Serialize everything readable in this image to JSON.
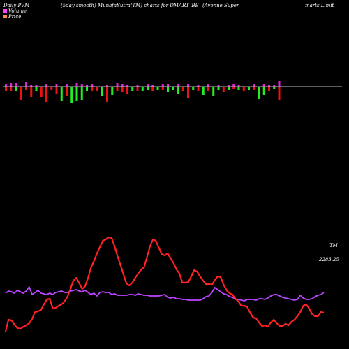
{
  "header": {
    "left": "Daily PVM",
    "center": "(5day smooth) MunafaSutra(TM) charts for DMART_BE",
    "right_a": "(Avenue   Super",
    "right_b": "marts Limit"
  },
  "legend": {
    "volume_label": "Volume",
    "price_label": "Price",
    "volume_color": "#ff44ff",
    "price_color": "#ff8844"
  },
  "labels": {
    "tm": "TM",
    "last_price": "2283.25"
  },
  "colors": {
    "background": "#000000",
    "volume_up": "#dd22dd",
    "volume_down_green": "#22ee22",
    "volume_down_red": "#ee1111",
    "price_line": "#ff2222",
    "volume_line": "#bb44ff",
    "baseline": "#bbbbbb"
  },
  "chart_data": {
    "type": "bar+line",
    "volume_bars": [
      {
        "up": 3,
        "down": 6,
        "down_color": "red"
      },
      {
        "up": 5,
        "down": 6,
        "down_color": "red"
      },
      {
        "up": 5,
        "down": 6,
        "down_color": "green"
      },
      {
        "up": 0,
        "down": 19,
        "down_color": "red"
      },
      {
        "up": 7,
        "down": 5,
        "down_color": "red"
      },
      {
        "up": 2,
        "down": 15,
        "down_color": "red"
      },
      {
        "up": 2,
        "down": 6,
        "down_color": "green"
      },
      {
        "up": 0,
        "down": 15,
        "down_color": "red"
      },
      {
        "up": 3,
        "down": 22,
        "down_color": "red"
      },
      {
        "up": 0,
        "down": 5,
        "down_color": "red"
      },
      {
        "up": 3,
        "down": 11,
        "down_color": "red"
      },
      {
        "up": 0,
        "down": 20,
        "down_color": "green"
      },
      {
        "up": 4,
        "down": 13,
        "down_color": "red"
      },
      {
        "up": 0,
        "down": 23,
        "down_color": "green"
      },
      {
        "up": 5,
        "down": 20,
        "down_color": "green"
      },
      {
        "up": 3,
        "down": 19,
        "down_color": "green"
      },
      {
        "up": 2,
        "down": 6,
        "down_color": "green"
      },
      {
        "up": 4,
        "down": 7,
        "down_color": "red"
      },
      {
        "up": 0,
        "down": 6,
        "down_color": "red"
      },
      {
        "up": 0,
        "down": 13,
        "down_color": "green"
      },
      {
        "up": 2,
        "down": 22,
        "down_color": "red"
      },
      {
        "up": 0,
        "down": 12,
        "down_color": "green"
      },
      {
        "up": 5,
        "down": 6,
        "down_color": "red"
      },
      {
        "up": 3,
        "down": 8,
        "down_color": "red"
      },
      {
        "up": 2,
        "down": 10,
        "down_color": "red"
      },
      {
        "up": 0,
        "down": 6,
        "down_color": "green"
      },
      {
        "up": 2,
        "down": 6,
        "down_color": "red"
      },
      {
        "up": 0,
        "down": 7,
        "down_color": "green"
      },
      {
        "up": 3,
        "down": 5,
        "down_color": "green"
      },
      {
        "up": 2,
        "down": 6,
        "down_color": "red"
      },
      {
        "up": 0,
        "down": 5,
        "down_color": "green"
      },
      {
        "up": 3,
        "down": 5,
        "down_color": "red"
      },
      {
        "up": 4,
        "down": 8,
        "down_color": "green"
      },
      {
        "up": 0,
        "down": 5,
        "down_color": "green"
      },
      {
        "up": 3,
        "down": 10,
        "down_color": "green"
      },
      {
        "up": 0,
        "down": 7,
        "down_color": "red"
      },
      {
        "up": 3,
        "down": 16,
        "down_color": "red"
      },
      {
        "up": 0,
        "down": 5,
        "down_color": "green"
      },
      {
        "up": 2,
        "down": 6,
        "down_color": "red"
      },
      {
        "up": 0,
        "down": 12,
        "down_color": "green"
      },
      {
        "up": 3,
        "down": 7,
        "down_color": "red"
      },
      {
        "up": 0,
        "down": 13,
        "down_color": "green"
      },
      {
        "up": 2,
        "down": 5,
        "down_color": "green"
      },
      {
        "up": 0,
        "down": 8,
        "down_color": "red"
      },
      {
        "up": 2,
        "down": 5,
        "down_color": "green"
      },
      {
        "up": 3,
        "down": 3,
        "down_color": "red"
      },
      {
        "up": 2,
        "down": 5,
        "down_color": "green"
      },
      {
        "up": 0,
        "down": 6,
        "down_color": "red"
      },
      {
        "up": 0,
        "down": 5,
        "down_color": "green"
      },
      {
        "up": 3,
        "down": 5,
        "down_color": "red"
      },
      {
        "up": 0,
        "down": 18,
        "down_color": "green"
      },
      {
        "up": 3,
        "down": 12,
        "down_color": "green"
      },
      {
        "up": 2,
        "down": 7,
        "down_color": "red"
      },
      {
        "up": 2,
        "down": 4,
        "down_color": "green"
      },
      {
        "up": 8,
        "down": 19,
        "down_color": "red"
      }
    ],
    "price_series": [
      5,
      22,
      21,
      15,
      10,
      9,
      12,
      14,
      17,
      23,
      33,
      34,
      36,
      44,
      51,
      52,
      38,
      39,
      42,
      44,
      48,
      55,
      66,
      78,
      82,
      74,
      66,
      70,
      82,
      97,
      106,
      117,
      126,
      135,
      137,
      140,
      139,
      127,
      113,
      100,
      87,
      74,
      71,
      75,
      82,
      88,
      94,
      97,
      112,
      127,
      137,
      135,
      125,
      116,
      114,
      117,
      110,
      103,
      94,
      88,
      75,
      75,
      76,
      84,
      93,
      91,
      84,
      78,
      73,
      73,
      72,
      79,
      84,
      83,
      72,
      64,
      60,
      58,
      52,
      48,
      42,
      42,
      40,
      32,
      25,
      24,
      18,
      13,
      14,
      12,
      18,
      22,
      17,
      13,
      13,
      16,
      14,
      19,
      22,
      27,
      33,
      42,
      44,
      38,
      30,
      27,
      27,
      33,
      32
    ],
    "volume_series": [
      60,
      63,
      62,
      60,
      64,
      62,
      60,
      63,
      69,
      58,
      61,
      64,
      60,
      59,
      58,
      60,
      58,
      61,
      62,
      63,
      61,
      61,
      63,
      64,
      65,
      63,
      62,
      64,
      61,
      58,
      60,
      56,
      61,
      62,
      61,
      61,
      58,
      59,
      57,
      57,
      57,
      57,
      58,
      58,
      57,
      59,
      58,
      57,
      57,
      56,
      56,
      56,
      56,
      57,
      58,
      54,
      53,
      54,
      52,
      52,
      51,
      51,
      50,
      50,
      50,
      50,
      50,
      52,
      55,
      56,
      61,
      68,
      65,
      62,
      59,
      58,
      55,
      54,
      51,
      51,
      50,
      49,
      51,
      51,
      51,
      50,
      52,
      52,
      51,
      53,
      56,
      58,
      58,
      56,
      54,
      53,
      52,
      51,
      50,
      51,
      57,
      53,
      51,
      51,
      52,
      55,
      57,
      58,
      61
    ],
    "price_last": 2283.25
  }
}
